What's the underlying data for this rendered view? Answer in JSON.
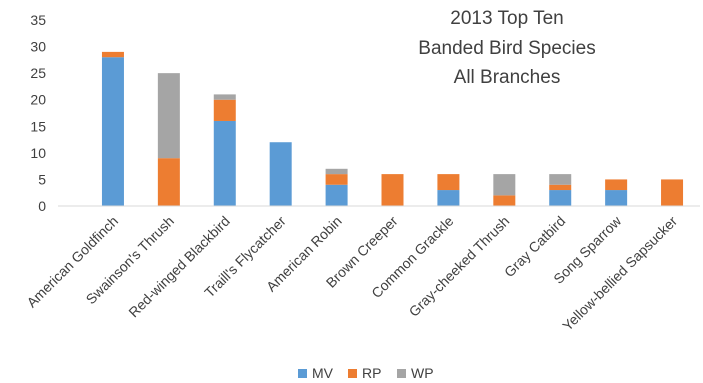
{
  "chart_data": {
    "type": "bar",
    "stacked": true,
    "title_lines": [
      "2013 Top Ten",
      "Banded Bird Species",
      "All Branches"
    ],
    "categories": [
      "American Goldfinch",
      "Swainson's Thrush",
      "Red-winged Blackbird",
      "Traill's Flycatcher",
      "American Robin",
      "Brown Creeper",
      "Common Grackle",
      "Gray-cheeked Thrush",
      "Gray Catbird",
      "Song Sparrow",
      "Yellow-bellied Sapsucker"
    ],
    "series": [
      {
        "name": "MV",
        "color": "#5b9bd5",
        "values": [
          28,
          0,
          16,
          12,
          4,
          0,
          3,
          0,
          3,
          3,
          0
        ]
      },
      {
        "name": "RP",
        "color": "#ed7d31",
        "values": [
          1,
          9,
          4,
          0,
          2,
          6,
          3,
          2,
          1,
          2,
          5
        ]
      },
      {
        "name": "WP",
        "color": "#a5a5a5",
        "values": [
          0,
          16,
          1,
          0,
          1,
          0,
          0,
          4,
          2,
          0,
          0
        ]
      }
    ],
    "ylim": [
      0,
      35
    ],
    "yticks": [
      0,
      5,
      10,
      15,
      20,
      25,
      30,
      35
    ],
    "grid": false,
    "legend_position": "bottom"
  }
}
